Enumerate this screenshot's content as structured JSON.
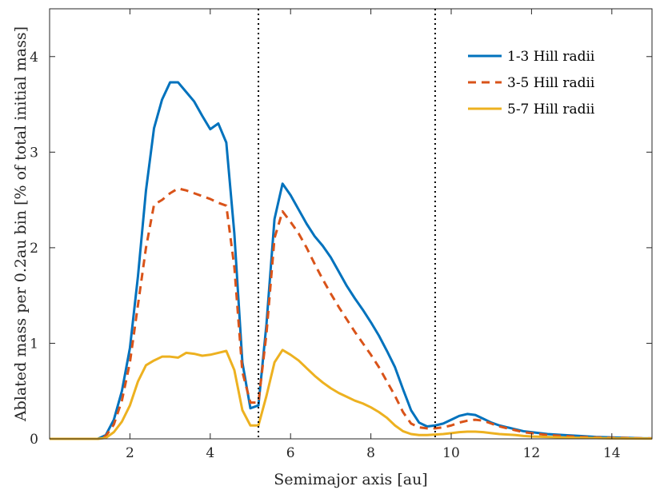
{
  "chart_data": {
    "type": "line",
    "title": "",
    "xlabel": "Semimajor axis [au]",
    "ylabel": "Ablated mass per 0.2au bin [% of total initial mass]",
    "xlim": [
      0,
      15
    ],
    "ylim": [
      0,
      4.5
    ],
    "xticks": [
      2,
      4,
      6,
      8,
      10,
      12,
      14
    ],
    "yticks": [
      0,
      1,
      2,
      3,
      4
    ],
    "grid": false,
    "legend_position": "top-right",
    "vlines": [
      5.2,
      9.6
    ],
    "series": [
      {
        "name": "1-3 Hill radii",
        "color": "#0072BD",
        "style": "solid",
        "x": [
          0.0,
          0.2,
          0.4,
          0.6,
          0.8,
          1.0,
          1.2,
          1.4,
          1.6,
          1.8,
          2.0,
          2.2,
          2.4,
          2.6,
          2.8,
          3.0,
          3.2,
          3.4,
          3.6,
          3.8,
          4.0,
          4.2,
          4.4,
          4.6,
          4.8,
          5.0,
          5.2,
          5.4,
          5.6,
          5.8,
          6.0,
          6.2,
          6.4,
          6.6,
          6.8,
          7.0,
          7.2,
          7.4,
          7.6,
          7.8,
          8.0,
          8.2,
          8.4,
          8.6,
          8.8,
          9.0,
          9.2,
          9.4,
          9.6,
          9.8,
          10.0,
          10.2,
          10.4,
          10.6,
          10.8,
          11.0,
          11.2,
          11.4,
          11.6,
          11.8,
          12.0,
          12.4,
          12.8,
          13.2,
          13.6,
          14.0,
          14.4,
          14.8,
          15.0
        ],
        "y": [
          0,
          0,
          0,
          0,
          0,
          0,
          0,
          0.04,
          0.2,
          0.5,
          0.95,
          1.7,
          2.6,
          3.25,
          3.55,
          3.73,
          3.73,
          3.63,
          3.53,
          3.38,
          3.24,
          3.3,
          3.1,
          2.15,
          0.8,
          0.32,
          0.35,
          1.2,
          2.3,
          2.67,
          2.55,
          2.4,
          2.25,
          2.12,
          2.02,
          1.9,
          1.75,
          1.6,
          1.47,
          1.35,
          1.22,
          1.08,
          0.92,
          0.75,
          0.52,
          0.3,
          0.17,
          0.13,
          0.14,
          0.16,
          0.2,
          0.24,
          0.26,
          0.25,
          0.21,
          0.17,
          0.14,
          0.12,
          0.1,
          0.08,
          0.07,
          0.05,
          0.04,
          0.03,
          0.02,
          0.015,
          0.01,
          0.005,
          0.005
        ]
      },
      {
        "name": "3-5 Hill radii",
        "color": "#D95319",
        "style": "dashed",
        "x": [
          0.0,
          0.2,
          0.4,
          0.6,
          0.8,
          1.0,
          1.2,
          1.4,
          1.6,
          1.8,
          2.0,
          2.2,
          2.4,
          2.6,
          2.8,
          3.0,
          3.2,
          3.4,
          3.6,
          3.8,
          4.0,
          4.2,
          4.4,
          4.6,
          4.8,
          5.0,
          5.2,
          5.4,
          5.6,
          5.8,
          6.0,
          6.2,
          6.4,
          6.6,
          6.8,
          7.0,
          7.2,
          7.4,
          7.6,
          7.8,
          8.0,
          8.2,
          8.4,
          8.6,
          8.8,
          9.0,
          9.2,
          9.4,
          9.6,
          9.8,
          10.0,
          10.2,
          10.4,
          10.6,
          10.8,
          11.0,
          11.2,
          11.4,
          11.6,
          11.8,
          12.0,
          12.4,
          12.8,
          13.2,
          13.6,
          14.0,
          14.4,
          14.8,
          15.0
        ],
        "y": [
          0,
          0,
          0,
          0,
          0,
          0,
          0,
          0.03,
          0.15,
          0.4,
          0.8,
          1.4,
          2.0,
          2.45,
          2.5,
          2.57,
          2.62,
          2.6,
          2.57,
          2.54,
          2.51,
          2.47,
          2.44,
          1.8,
          0.7,
          0.38,
          0.38,
          1.1,
          2.1,
          2.38,
          2.27,
          2.15,
          2.0,
          1.83,
          1.67,
          1.52,
          1.38,
          1.25,
          1.12,
          1.0,
          0.88,
          0.75,
          0.6,
          0.45,
          0.28,
          0.16,
          0.12,
          0.11,
          0.11,
          0.12,
          0.14,
          0.17,
          0.19,
          0.2,
          0.19,
          0.16,
          0.13,
          0.11,
          0.09,
          0.07,
          0.06,
          0.04,
          0.03,
          0.02,
          0.015,
          0.01,
          0.008,
          0.005,
          0.005
        ]
      },
      {
        "name": "5-7 Hill radii",
        "color": "#EDB120",
        "style": "solid",
        "x": [
          0.0,
          0.2,
          0.4,
          0.6,
          0.8,
          1.0,
          1.2,
          1.4,
          1.6,
          1.8,
          2.0,
          2.2,
          2.4,
          2.6,
          2.8,
          3.0,
          3.2,
          3.4,
          3.6,
          3.8,
          4.0,
          4.2,
          4.4,
          4.6,
          4.8,
          5.0,
          5.2,
          5.4,
          5.6,
          5.8,
          6.0,
          6.2,
          6.4,
          6.6,
          6.8,
          7.0,
          7.2,
          7.4,
          7.6,
          7.8,
          8.0,
          8.2,
          8.4,
          8.6,
          8.8,
          9.0,
          9.2,
          9.4,
          9.6,
          9.8,
          10.0,
          10.2,
          10.4,
          10.6,
          10.8,
          11.0,
          11.2,
          11.4,
          11.6,
          11.8,
          12.0,
          12.4,
          12.8,
          13.2,
          13.6,
          14.0,
          14.4,
          14.8,
          15.0
        ],
        "y": [
          0,
          0,
          0,
          0,
          0,
          0,
          0,
          0.01,
          0.07,
          0.18,
          0.35,
          0.6,
          0.77,
          0.82,
          0.86,
          0.86,
          0.85,
          0.9,
          0.89,
          0.87,
          0.88,
          0.9,
          0.92,
          0.72,
          0.3,
          0.14,
          0.14,
          0.45,
          0.8,
          0.93,
          0.88,
          0.82,
          0.74,
          0.66,
          0.59,
          0.53,
          0.48,
          0.44,
          0.4,
          0.37,
          0.33,
          0.28,
          0.22,
          0.14,
          0.08,
          0.05,
          0.04,
          0.04,
          0.045,
          0.05,
          0.06,
          0.07,
          0.075,
          0.075,
          0.07,
          0.06,
          0.05,
          0.045,
          0.04,
          0.03,
          0.025,
          0.02,
          0.015,
          0.01,
          0.008,
          0.005,
          0.004,
          0.003,
          0.003
        ]
      }
    ]
  }
}
